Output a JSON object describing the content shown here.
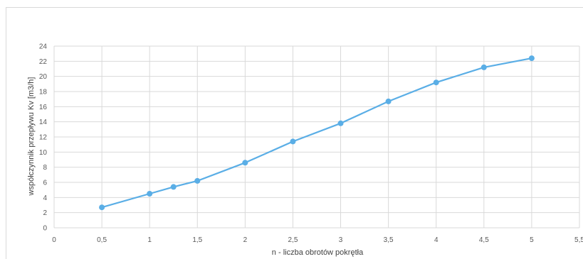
{
  "chart_data": {
    "type": "line",
    "title": "",
    "xlabel": "n - liczba obrotów pokrętła",
    "ylabel": "współczynnik przepływu Kv [m3/h]",
    "xlim": [
      0,
      5.5
    ],
    "ylim": [
      0,
      24
    ],
    "x_ticks": [
      "0",
      "0,5",
      "1",
      "1,5",
      "2",
      "2,5",
      "3",
      "3,5",
      "4",
      "4,5",
      "5",
      "5,5"
    ],
    "y_ticks": [
      "0",
      "2",
      "4",
      "6",
      "8",
      "10",
      "12",
      "14",
      "16",
      "18",
      "20",
      "22",
      "24"
    ],
    "grid": true,
    "legend": "none",
    "line_color": "#5aaee6",
    "series": [
      {
        "x": [
          0.5,
          1,
          1.25,
          1.5,
          2,
          2.5,
          3,
          3.5,
          4,
          4.5,
          5
        ],
        "y": [
          2.7,
          4.5,
          5.4,
          6.2,
          8.6,
          11.4,
          13.8,
          16.7,
          19.2,
          21.2,
          22.4
        ]
      }
    ]
  }
}
